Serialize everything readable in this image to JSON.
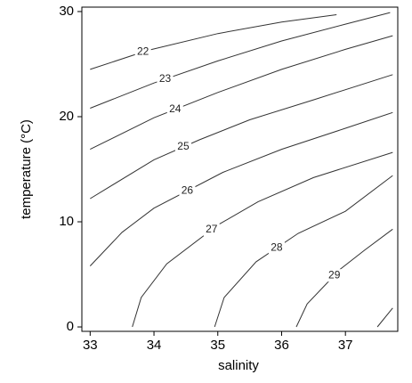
{
  "chart_data": {
    "type": "contour",
    "xlabel": "salinity",
    "ylabel": "temperature (°C)",
    "xlim": [
      32.87,
      37.82
    ],
    "ylim": [
      -0.42,
      30.42
    ],
    "xticks": [
      33,
      34,
      35,
      36,
      37
    ],
    "yticks": [
      0,
      10,
      20,
      30
    ],
    "color": "#333333",
    "series": [
      {
        "label": 22,
        "x": [
          33,
          33.9,
          35,
          36,
          36.86
        ],
        "values": [
          24.5,
          26.3,
          27.9,
          29.0,
          29.7
        ]
      },
      {
        "label": 23,
        "x": [
          33,
          34,
          35,
          36,
          37,
          37.7
        ],
        "values": [
          20.8,
          23.2,
          25.3,
          27.2,
          28.8,
          29.9
        ]
      },
      {
        "label": 24,
        "x": [
          33,
          34,
          35,
          36,
          37,
          37.74
        ],
        "values": [
          16.9,
          19.9,
          22.3,
          24.5,
          26.4,
          27.7
        ]
      },
      {
        "label": 25,
        "x": [
          33,
          34,
          34.71,
          35.5,
          36.5,
          37.74
        ],
        "values": [
          12.2,
          15.9,
          17.8,
          19.7,
          21.6,
          24.0
        ]
      },
      {
        "label": 26,
        "x": [
          33,
          33.5,
          34,
          35.08,
          36,
          37,
          37.74
        ],
        "values": [
          5.8,
          9.0,
          11.3,
          14.7,
          16.9,
          18.9,
          20.4
        ]
      },
      {
        "label": 27,
        "x": [
          33.66,
          33.8,
          34.2,
          35,
          35.63,
          36.5,
          37.74
        ],
        "values": [
          0,
          2.8,
          6.0,
          9.7,
          11.9,
          14.2,
          16.6
        ]
      },
      {
        "label": 28,
        "x": [
          34.95,
          35.1,
          35.6,
          36.26,
          37,
          37.74
        ],
        "values": [
          0,
          2.8,
          6.2,
          8.9,
          11.0,
          14.4
        ]
      },
      {
        "label": 29,
        "x": [
          36.23,
          36.4,
          36.92,
          37.3,
          37.74
        ],
        "values": [
          0,
          2.2,
          5.5,
          7.3,
          9.3
        ]
      },
      {
        "label": null,
        "x": [
          37.5,
          37.74
        ],
        "values": [
          0,
          1.8
        ]
      }
    ]
  }
}
